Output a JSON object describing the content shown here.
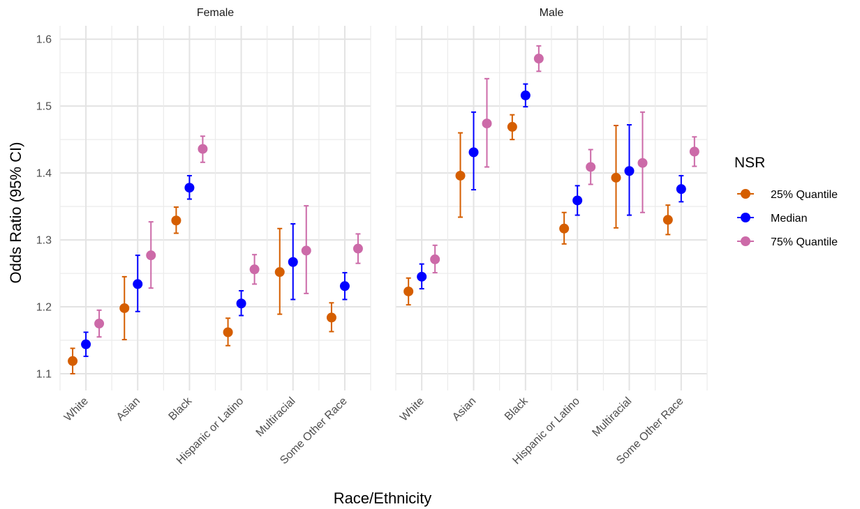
{
  "chart_data": {
    "type": "scatter",
    "subtype": "dot-and-errorbar, faceted",
    "ylabel": "Odds Ratio (95% CI)",
    "xlabel": "Race/Ethnicity",
    "ylim": [
      1.075,
      1.62
    ],
    "yticks": [
      1.1,
      1.2,
      1.3,
      1.4,
      1.5,
      1.6
    ],
    "ytick_labels": [
      "1.1",
      "1.2",
      "1.3",
      "1.4",
      "1.5",
      "1.6"
    ],
    "categories": [
      "White",
      "Asian",
      "Black",
      "Hispanic or Latino",
      "Multiracial",
      "Some Other Race"
    ],
    "grid": true,
    "legend": {
      "title": "NSR",
      "position": "right",
      "entries": [
        "25% Quantile",
        "Median",
        "75% Quantile"
      ]
    },
    "colors": {
      "25% Quantile": "#d55e00",
      "Median": "#0000ff",
      "75% Quantile": "#cc6aa8"
    },
    "panels": [
      {
        "title": "Female",
        "series": [
          {
            "name": "25% Quantile",
            "values": [
              1.119,
              1.198,
              1.329,
              1.162,
              1.252,
              1.184
            ],
            "lower": [
              1.1,
              1.151,
              1.31,
              1.142,
              1.189,
              1.163
            ],
            "upper": [
              1.138,
              1.245,
              1.349,
              1.183,
              1.317,
              1.206
            ]
          },
          {
            "name": "Median",
            "values": [
              1.144,
              1.234,
              1.378,
              1.205,
              1.267,
              1.231
            ],
            "lower": [
              1.126,
              1.193,
              1.361,
              1.187,
              1.211,
              1.211
            ],
            "upper": [
              1.162,
              1.277,
              1.396,
              1.224,
              1.324,
              1.251
            ]
          },
          {
            "name": "75% Quantile",
            "values": [
              1.175,
              1.277,
              1.436,
              1.256,
              1.284,
              1.287
            ],
            "lower": [
              1.155,
              1.228,
              1.416,
              1.234,
              1.22,
              1.265
            ],
            "upper": [
              1.195,
              1.327,
              1.455,
              1.278,
              1.351,
              1.309
            ]
          }
        ]
      },
      {
        "title": "Male",
        "series": [
          {
            "name": "25% Quantile",
            "values": [
              1.223,
              1.396,
              1.469,
              1.317,
              1.393,
              1.33
            ],
            "lower": [
              1.203,
              1.334,
              1.45,
              1.294,
              1.318,
              1.308
            ],
            "upper": [
              1.243,
              1.46,
              1.487,
              1.341,
              1.471,
              1.352
            ]
          },
          {
            "name": "Median",
            "values": [
              1.245,
              1.431,
              1.516,
              1.359,
              1.403,
              1.376
            ],
            "lower": [
              1.227,
              1.375,
              1.499,
              1.337,
              1.337,
              1.357
            ],
            "upper": [
              1.264,
              1.491,
              1.533,
              1.381,
              1.472,
              1.396
            ]
          },
          {
            "name": "75% Quantile",
            "values": [
              1.271,
              1.474,
              1.571,
              1.409,
              1.415,
              1.432
            ],
            "lower": [
              1.251,
              1.409,
              1.552,
              1.383,
              1.341,
              1.41
            ],
            "upper": [
              1.292,
              1.541,
              1.59,
              1.435,
              1.491,
              1.454
            ]
          }
        ]
      }
    ]
  }
}
